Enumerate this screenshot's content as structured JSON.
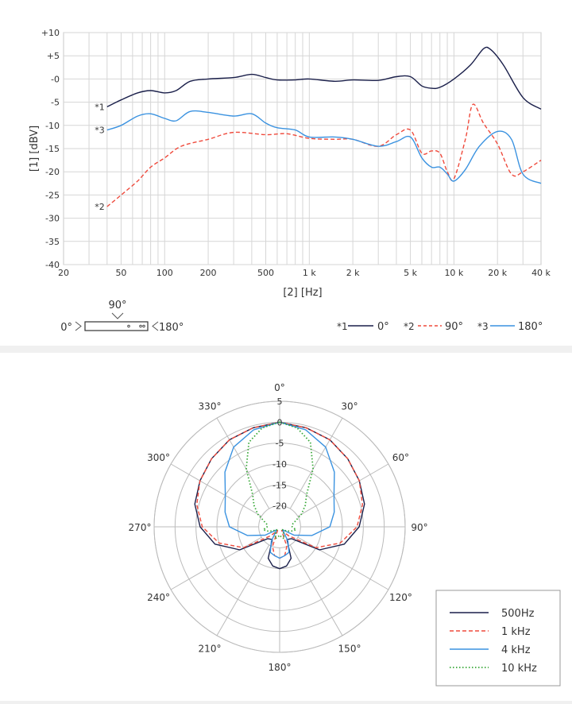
{
  "chart_data": [
    {
      "type": "line",
      "log_x": true,
      "xlim": [
        20,
        40000
      ],
      "ylim": [
        -40,
        10
      ],
      "ylabel": "[1] [dBV]",
      "xlabel": "[2] [Hz]",
      "x_ticks": [
        20,
        50,
        100,
        200,
        500,
        1000,
        2000,
        5000,
        10000,
        20000,
        40000
      ],
      "x_tick_labels": [
        "20",
        "50",
        "100",
        "200",
        "500",
        "1 k",
        "2 k",
        "5 k",
        "10 k",
        "20 k",
        "40 k"
      ],
      "y_ticks": [
        10,
        5,
        0,
        -5,
        -10,
        -15,
        -20,
        -25,
        -30,
        -35,
        -40
      ],
      "y_tick_labels": [
        "+10",
        "+5",
        "-0",
        "-5",
        "-10",
        "-15",
        "-20",
        "-25",
        "-30",
        "-35",
        "-40"
      ],
      "grid": true,
      "series": [
        {
          "id": "s1",
          "mark": "*1",
          "name": "0°",
          "color": "#1a1f4a",
          "dash": "solid",
          "x": [
            40,
            50,
            65,
            80,
            100,
            120,
            150,
            200,
            300,
            400,
            500,
            600,
            800,
            1000,
            1500,
            2000,
            3000,
            4000,
            5000,
            6000,
            7000,
            8000,
            10000,
            13000,
            16000,
            18000,
            22000,
            30000,
            40000
          ],
          "y": [
            -6,
            -4.5,
            -3,
            -2.5,
            -3,
            -2.5,
            -0.5,
            0,
            0.3,
            1,
            0.3,
            -0.2,
            -0.2,
            0,
            -0.5,
            -0.2,
            -0.3,
            0.5,
            0.5,
            -1.5,
            -2,
            -1.8,
            0,
            3,
            6.5,
            6.3,
            3,
            -4,
            -6.5
          ]
        },
        {
          "id": "s2",
          "mark": "*2",
          "name": "90°",
          "color": "#ef4a3c",
          "dash": "dashed",
          "x": [
            40,
            50,
            65,
            80,
            100,
            130,
            200,
            300,
            500,
            700,
            1000,
            1500,
            2000,
            3000,
            4000,
            5000,
            6000,
            7000,
            8000,
            9000,
            10000,
            12000,
            13500,
            16000,
            20000,
            25000,
            30000,
            40000
          ],
          "y": [
            -27.5,
            -25,
            -22,
            -19,
            -17,
            -14.5,
            -13,
            -11.5,
            -12,
            -11.8,
            -12.8,
            -13,
            -13,
            -14.5,
            -12,
            -11,
            -16,
            -15.5,
            -16,
            -20,
            -21.5,
            -13,
            -5.5,
            -9.5,
            -14,
            -20.5,
            -20,
            -17.5
          ]
        },
        {
          "id": "s3",
          "mark": "*3",
          "name": "180°",
          "color": "#3a92e0",
          "dash": "solid",
          "x": [
            40,
            50,
            65,
            80,
            100,
            120,
            150,
            200,
            300,
            400,
            500,
            600,
            800,
            1000,
            1500,
            2000,
            3000,
            4000,
            5000,
            6000,
            7000,
            8000,
            9000,
            10000,
            12000,
            15000,
            20000,
            25000,
            30000,
            40000
          ],
          "y": [
            -11,
            -10,
            -8,
            -7.5,
            -8.5,
            -9,
            -7,
            -7.2,
            -8,
            -7.5,
            -9.5,
            -10.5,
            -11,
            -12.5,
            -12.5,
            -13,
            -14.5,
            -13.5,
            -12.5,
            -17,
            -19,
            -19,
            -20.5,
            -22,
            -19.5,
            -14.5,
            -11.3,
            -13,
            -20.5,
            -22.5
          ]
        }
      ],
      "legend": {
        "entries": [
          {
            "mark": "*1",
            "label": "0°"
          },
          {
            "mark": "*2",
            "label": "90°"
          },
          {
            "mark": "*3",
            "label": "180°"
          }
        ]
      },
      "orientation_diagram": {
        "left_label": "0°",
        "top_label": "90°",
        "right_label": "180°"
      }
    },
    {
      "type": "polar",
      "rlim": [
        -25,
        5
      ],
      "r_ticks": [
        5,
        0,
        -5,
        -10,
        -15,
        -20
      ],
      "r_tick_labels": [
        "5",
        "0",
        "-5",
        "-10",
        "-15",
        "-20"
      ],
      "angle_labels": [
        "0°",
        "30°",
        "60°",
        "90°",
        "120°",
        "150°",
        "180°",
        "210°",
        "240°",
        "270°",
        "300°",
        "330°"
      ],
      "angles": [
        0,
        30,
        60,
        90,
        120,
        150,
        180,
        210,
        240,
        270,
        300,
        330
      ],
      "series": [
        {
          "id": "p1",
          "name": "500Hz",
          "color": "#1a1f4a",
          "dash": "solid",
          "angles": [
            0,
            15,
            30,
            45,
            60,
            75,
            90,
            105,
            120,
            135,
            150,
            160,
            170,
            180
          ],
          "r": [
            0,
            -0.5,
            -1,
            -2,
            -3,
            -4,
            -6,
            -9,
            -14,
            -21,
            -21.5,
            -17,
            -15.5,
            -15
          ]
        },
        {
          "id": "p2",
          "name": "1 kHz",
          "color": "#ef4a3c",
          "dash": "dashed",
          "angles": [
            0,
            15,
            30,
            45,
            60,
            75,
            90,
            105,
            120,
            135,
            150,
            160,
            170,
            180
          ],
          "r": [
            0,
            -0.5,
            -1,
            -2,
            -3,
            -4.5,
            -6.5,
            -10,
            -15,
            -22,
            -24,
            -20,
            -18,
            -17.5
          ]
        },
        {
          "id": "p3",
          "name": "4 kHz",
          "color": "#3a92e0",
          "dash": "solid",
          "angles": [
            0,
            15,
            30,
            45,
            60,
            75,
            90,
            105,
            120,
            135,
            150,
            160,
            170,
            180
          ],
          "r": [
            0,
            -1,
            -3,
            -6.5,
            -10,
            -11.5,
            -13,
            -17,
            -21,
            -24,
            -21,
            -18.5,
            -18,
            -17.5
          ]
        },
        {
          "id": "p4",
          "name": "10 kHz",
          "color": "#38a838",
          "dash": "dotted",
          "angles": [
            0,
            10,
            20,
            30,
            40,
            50,
            60,
            70,
            80,
            90,
            100,
            110,
            120,
            135,
            150,
            160,
            170,
            180
          ],
          "r": [
            0,
            -1,
            -3.5,
            -9,
            -15,
            -17,
            -19,
            -21,
            -22,
            -22,
            -21,
            -22,
            -23,
            -24,
            -23,
            -22,
            -22.5,
            -23
          ]
        }
      ],
      "legend": [
        "500Hz",
        "1 kHz",
        "4 kHz",
        "10 kHz"
      ]
    }
  ]
}
